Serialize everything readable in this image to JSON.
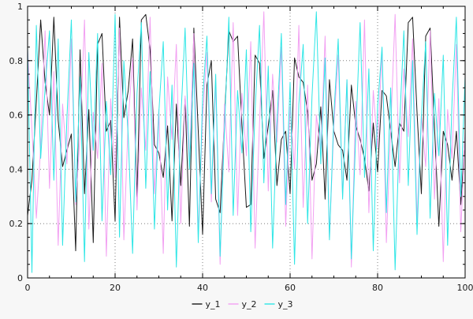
{
  "figure": {
    "background": "#f7f7f7",
    "plot_background": "#ffffff",
    "border_color": "#000000",
    "grid_color": "#7f7f7f",
    "tick_label_color": "#1a1a1a",
    "tick_label_font_size": 11
  },
  "chart_data": {
    "type": "line",
    "title": "",
    "xlabel": "",
    "ylabel": "",
    "xlim": [
      0,
      100
    ],
    "ylim": [
      0,
      1
    ],
    "x_ticks": [
      0,
      20,
      40,
      60,
      80,
      100
    ],
    "x_tick_labels": [
      "0",
      "20",
      "40",
      "60",
      "80",
      "100"
    ],
    "x_minor_step": 5,
    "y_ticks": [
      0,
      0.2,
      0.4,
      0.6,
      0.8,
      1
    ],
    "y_tick_labels": [
      "0",
      "0.2",
      "0.4",
      "0.6",
      "0.8",
      "1"
    ],
    "y_minor_step": 0.05,
    "grid": true,
    "legend_position": "bottom-center",
    "series": [
      {
        "name": "y_1",
        "color": "#1a1a1a",
        "values": [
          0.23,
          0.36,
          0.65,
          0.95,
          0.72,
          0.6,
          0.96,
          0.58,
          0.41,
          0.47,
          0.53,
          0.1,
          0.84,
          0.31,
          0.62,
          0.13,
          0.86,
          0.9,
          0.54,
          0.58,
          0.21,
          0.96,
          0.59,
          0.69,
          0.88,
          0.29,
          0.95,
          0.97,
          0.84,
          0.49,
          0.46,
          0.37,
          0.56,
          0.21,
          0.64,
          0.34,
          0.66,
          0.19,
          0.92,
          0.54,
          0.16,
          0.71,
          0.8,
          0.29,
          0.24,
          0.59,
          0.91,
          0.87,
          0.89,
          0.56,
          0.26,
          0.27,
          0.82,
          0.79,
          0.44,
          0.56,
          0.69,
          0.34,
          0.51,
          0.54,
          0.31,
          0.81,
          0.74,
          0.72,
          0.61,
          0.36,
          0.42,
          0.63,
          0.29,
          0.73,
          0.54,
          0.49,
          0.47,
          0.36,
          0.71,
          0.56,
          0.51,
          0.44,
          0.32,
          0.57,
          0.39,
          0.69,
          0.67,
          0.54,
          0.41,
          0.57,
          0.54,
          0.94,
          0.96,
          0.61,
          0.31,
          0.89,
          0.92,
          0.56,
          0.19,
          0.54,
          0.49,
          0.36,
          0.54,
          0.27,
          0.52
        ]
      },
      {
        "name": "y_2",
        "color": "#f2a0f2",
        "values": [
          0.84,
          0.55,
          0.22,
          0.48,
          0.91,
          0.33,
          0.76,
          0.12,
          0.64,
          0.42,
          0.88,
          0.27,
          0.53,
          0.95,
          0.18,
          0.61,
          0.44,
          0.79,
          0.08,
          0.66,
          0.37,
          0.92,
          0.14,
          0.58,
          0.81,
          0.25,
          0.7,
          0.47,
          0.96,
          0.31,
          0.62,
          0.09,
          0.74,
          0.51,
          0.86,
          0.2,
          0.67,
          0.43,
          0.9,
          0.16,
          0.59,
          0.83,
          0.28,
          0.72,
          0.05,
          0.64,
          0.39,
          0.94,
          0.23,
          0.68,
          0.45,
          0.87,
          0.11,
          0.57,
          0.98,
          0.32,
          0.75,
          0.5,
          0.85,
          0.19,
          0.63,
          0.4,
          0.93,
          0.26,
          0.71,
          0.07,
          0.6,
          0.46,
          0.89,
          0.15,
          0.56,
          0.82,
          0.3,
          0.73,
          0.04,
          0.65,
          0.38,
          0.95,
          0.24,
          0.69,
          0.48,
          0.84,
          0.13,
          0.55,
          0.97,
          0.35,
          0.77,
          0.52,
          0.88,
          0.21,
          0.6,
          0.41,
          0.91,
          0.29,
          0.66,
          0.06,
          0.62,
          0.44,
          0.86,
          0.17,
          0.54
        ]
      },
      {
        "name": "y_3",
        "color": "#2ee6e6",
        "values": [
          0.85,
          0.02,
          0.93,
          0.44,
          0.7,
          0.91,
          0.36,
          0.88,
          0.12,
          0.59,
          0.95,
          0.28,
          0.74,
          0.06,
          0.83,
          0.47,
          0.9,
          0.21,
          0.65,
          0.38,
          0.97,
          0.15,
          0.8,
          0.52,
          0.09,
          0.68,
          0.94,
          0.33,
          0.76,
          0.18,
          0.61,
          0.87,
          0.25,
          0.71,
          0.04,
          0.58,
          0.92,
          0.4,
          0.79,
          0.13,
          0.66,
          0.89,
          0.31,
          0.75,
          0.08,
          0.55,
          0.96,
          0.23,
          0.69,
          0.46,
          0.84,
          0.17,
          0.62,
          0.93,
          0.35,
          0.78,
          0.11,
          0.57,
          0.9,
          0.27,
          0.72,
          0.05,
          0.64,
          0.86,
          0.2,
          0.67,
          0.98,
          0.42,
          0.81,
          0.14,
          0.6,
          0.88,
          0.29,
          0.73,
          0.07,
          0.53,
          0.94,
          0.37,
          0.77,
          0.1,
          0.63,
          0.85,
          0.24,
          0.7,
          0.03,
          0.56,
          0.91,
          0.34,
          0.8,
          0.16,
          0.59,
          0.87,
          0.22,
          0.68,
          0.45,
          0.82,
          0.12,
          0.65,
          0.96,
          0.3,
          0.74
        ]
      }
    ]
  }
}
